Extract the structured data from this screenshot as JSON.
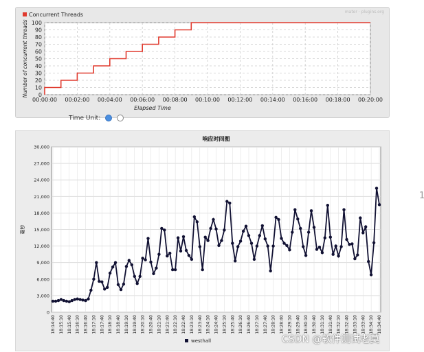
{
  "chart_data": [
    {
      "type": "line",
      "title": "",
      "legend": {
        "label": "Concurrent Threads",
        "color": "#e03a2e",
        "position": "top-left"
      },
      "xlabel": "Elapsed Time",
      "ylabel": "Number of concurrent threads",
      "x_ticks": [
        "00:00:00",
        "00:02:00",
        "00:04:00",
        "00:06:00",
        "00:08:00",
        "00:10:00",
        "00:12:00",
        "00:14:00",
        "00:16:00",
        "00:18:00",
        "00:20:00"
      ],
      "y_ticks": [
        0,
        10,
        20,
        30,
        40,
        50,
        60,
        70,
        80,
        90,
        100
      ],
      "xlim_seconds": [
        0,
        1200
      ],
      "ylim": [
        0,
        100
      ],
      "grid": true,
      "series": [
        {
          "name": "Concurrent Threads",
          "color": "#e03a2e",
          "x": [
            "00:00:00",
            "00:00:00",
            "00:01:00",
            "00:01:00",
            "00:02:00",
            "00:02:00",
            "00:03:00",
            "00:03:00",
            "00:04:00",
            "00:04:00",
            "00:05:00",
            "00:05:00",
            "00:06:00",
            "00:06:00",
            "00:07:00",
            "00:07:00",
            "00:08:00",
            "00:08:00",
            "00:09:00",
            "00:09:00",
            "00:20:00"
          ],
          "values": [
            0,
            10,
            10,
            20,
            20,
            30,
            30,
            40,
            40,
            50,
            50,
            60,
            60,
            70,
            70,
            80,
            80,
            90,
            90,
            100,
            100
          ]
        }
      ]
    },
    {
      "type": "line",
      "title": "响应时间图",
      "xlabel": "",
      "ylabel": "毫秒",
      "y_ticks": [
        0,
        3000,
        6000,
        9000,
        12000,
        15000,
        18000,
        21000,
        24000,
        27000,
        30000
      ],
      "y_tick_labels": [
        "0",
        "3,000",
        "6,000",
        "9,000",
        "12,000",
        "15,000",
        "18,000",
        "21,000",
        "24,000",
        "27,000",
        "30,000"
      ],
      "ylim": [
        0,
        30000
      ],
      "grid": true,
      "legend": {
        "label": "westhall",
        "color": "#111133",
        "position": "bottom-center"
      },
      "x_ticks": [
        "18:14:40",
        "18:15:10",
        "18:15:40",
        "18:16:10",
        "18:16:40",
        "18:17:10",
        "18:17:40",
        "18:18:10",
        "18:18:40",
        "18:19:10",
        "18:19:40",
        "18:20:10",
        "18:20:40",
        "18:21:10",
        "18:21:40",
        "18:22:10",
        "18:22:40",
        "18:23:10",
        "18:23:40",
        "18:24:10",
        "18:24:40",
        "18:25:10",
        "18:25:40",
        "18:26:10",
        "18:26:40",
        "18:27:10",
        "18:27:40",
        "18:28:10",
        "18:28:40",
        "18:29:10",
        "18:29:40",
        "18:30:10",
        "18:30:40",
        "18:31:10",
        "18:31:40",
        "18:32:10",
        "18:32:40",
        "18:33:10",
        "18:33:40",
        "18:34:10",
        "18:34:40"
      ],
      "series": [
        {
          "name": "westhall",
          "color": "#111133",
          "values": [
            2000,
            2000,
            2100,
            2300,
            2100,
            2000,
            1900,
            2100,
            2300,
            2400,
            2300,
            2200,
            2100,
            2400,
            4000,
            6000,
            9000,
            5600,
            5500,
            4200,
            4500,
            7100,
            8200,
            9000,
            5000,
            4100,
            5100,
            8300,
            9400,
            8600,
            6500,
            5200,
            6500,
            9800,
            9500,
            13400,
            9100,
            7000,
            8000,
            10500,
            15200,
            14900,
            10200,
            10700,
            7700,
            7700,
            13500,
            11100,
            13700,
            11200,
            10300,
            9600,
            17300,
            16400,
            11900,
            7700,
            13600,
            13000,
            15200,
            16800,
            15100,
            12100,
            13000,
            14900,
            20100,
            19800,
            12500,
            9300,
            11900,
            12900,
            14700,
            15600,
            13900,
            12500,
            9600,
            12000,
            13900,
            15700,
            13300,
            12000,
            7500,
            12000,
            17200,
            16800,
            13400,
            12500,
            12100,
            11300,
            14500,
            18600,
            16900,
            15200,
            11900,
            10300,
            14500,
            18400,
            15400,
            11400,
            11800,
            10800,
            13500,
            19400,
            13600,
            10500,
            12000,
            10200,
            11900,
            18600,
            13200,
            12300,
            12400,
            9700,
            10400,
            17100,
            14400,
            15500,
            9200,
            6800,
            12600,
            22500,
            19500
          ]
        }
      ]
    }
  ],
  "top_panel": {
    "watermark": "mater · plugins.org",
    "time_unit_label": "Time Unit:"
  },
  "side_mark": "1",
  "watermark": "CSDN @软件测试老莫"
}
